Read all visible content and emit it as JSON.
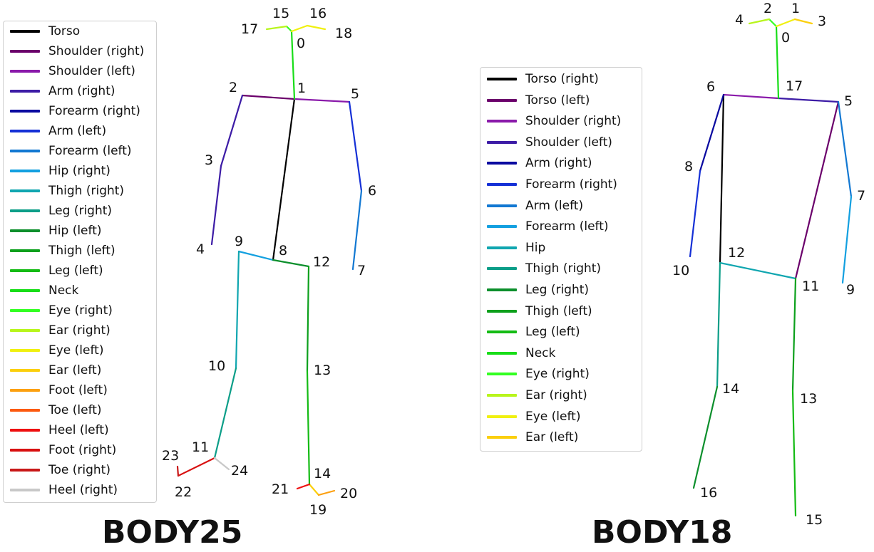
{
  "diagrams": [
    {
      "title": "BODY25",
      "legend": [
        {
          "label": "Torso",
          "color": "#000000"
        },
        {
          "label": "Shoulder (right)",
          "color": "#6b006b"
        },
        {
          "label": "Shoulder (left)",
          "color": "#8a1aaa"
        },
        {
          "label": "Arm (right)",
          "color": "#3d1ca6"
        },
        {
          "label": "Forearm (right)",
          "color": "#0a0aa0"
        },
        {
          "label": "Arm (left)",
          "color": "#1530d6"
        },
        {
          "label": "Forearm (left)",
          "color": "#1278d2"
        },
        {
          "label": "Hip (right)",
          "color": "#13a0e0"
        },
        {
          "label": "Thigh (right)",
          "color": "#10a6b0"
        },
        {
          "label": "Leg (right)",
          "color": "#0c9e88"
        },
        {
          "label": "Hip (left)",
          "color": "#0c8f2c"
        },
        {
          "label": "Thigh (left)",
          "color": "#0ca01c"
        },
        {
          "label": "Leg (left)",
          "color": "#14bb14"
        },
        {
          "label": "Neck",
          "color": "#18dd18"
        },
        {
          "label": "Eye (right)",
          "color": "#33ff22"
        },
        {
          "label": "Ear (right)",
          "color": "#b8f51c"
        },
        {
          "label": "Eye (left)",
          "color": "#f0f010"
        },
        {
          "label": "Ear (left)",
          "color": "#fbcf0c"
        },
        {
          "label": "Foot (left)",
          "color": "#fca010"
        },
        {
          "label": "Toe (left)",
          "color": "#fc5a10"
        },
        {
          "label": "Heel (left)",
          "color": "#ee1010"
        },
        {
          "label": "Foot (right)",
          "color": "#d81010"
        },
        {
          "label": "Toe (right)",
          "color": "#c81818"
        },
        {
          "label": "Heel (right)",
          "color": "#c8c8c8"
        }
      ],
      "keypoint_labels": [
        "0",
        "1",
        "2",
        "3",
        "4",
        "5",
        "6",
        "7",
        "8",
        "9",
        "10",
        "11",
        "12",
        "13",
        "14",
        "15",
        "16",
        "17",
        "18",
        "19",
        "20",
        "21",
        "22",
        "23",
        "24"
      ]
    },
    {
      "title": "BODY18",
      "legend": [
        {
          "label": "Torso (right)",
          "color": "#000000"
        },
        {
          "label": "Torso (left)",
          "color": "#6b006b"
        },
        {
          "label": "Shoulder (right)",
          "color": "#8a1aaa"
        },
        {
          "label": "Shoulder (left)",
          "color": "#3d1ca6"
        },
        {
          "label": "Arm (right)",
          "color": "#0a0aa0"
        },
        {
          "label": "Forearm (right)",
          "color": "#1530d6"
        },
        {
          "label": "Arm (left)",
          "color": "#1278d2"
        },
        {
          "label": "Forearm (left)",
          "color": "#13a0e0"
        },
        {
          "label": "Hip",
          "color": "#10a6b0"
        },
        {
          "label": "Thigh (right)",
          "color": "#0c9e88"
        },
        {
          "label": "Leg (right)",
          "color": "#0c8f2c"
        },
        {
          "label": "Thigh (left)",
          "color": "#0ca01c"
        },
        {
          "label": "Leg (left)",
          "color": "#14bb14"
        },
        {
          "label": "Neck",
          "color": "#18dd18"
        },
        {
          "label": "Eye (right)",
          "color": "#33ff22"
        },
        {
          "label": "Ear (right)",
          "color": "#b8f51c"
        },
        {
          "label": "Eye (left)",
          "color": "#f0f010"
        },
        {
          "label": "Ear (left)",
          "color": "#fbcf0c"
        }
      ],
      "keypoint_labels": [
        "0",
        "1",
        "2",
        "3",
        "4",
        "5",
        "6",
        "7",
        "8",
        "9",
        "10",
        "11",
        "12",
        "13",
        "14",
        "15",
        "16",
        "17"
      ]
    }
  ]
}
